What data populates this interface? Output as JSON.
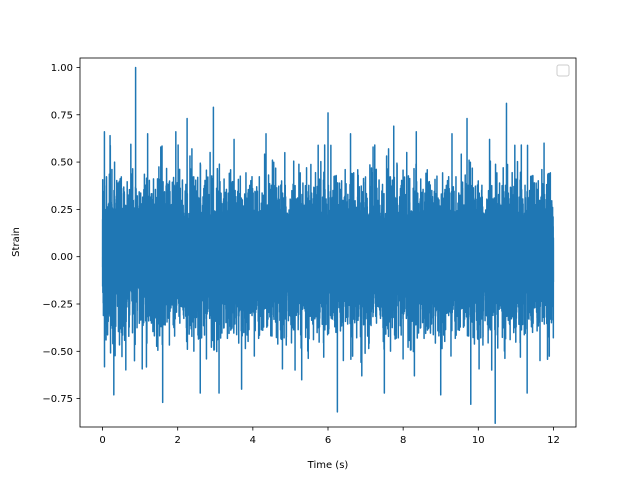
{
  "chart_data": {
    "type": "line",
    "title": "",
    "xlabel": "Time (s)",
    "ylabel": "Strain",
    "xlim": [
      -0.6,
      12.6
    ],
    "ylim": [
      -0.9,
      1.05
    ],
    "xticks": [
      0,
      2,
      4,
      6,
      8,
      10,
      12
    ],
    "xtick_labels": [
      "0",
      "2",
      "4",
      "6",
      "8",
      "10",
      "12"
    ],
    "yticks": [
      -0.75,
      -0.5,
      -0.25,
      0.0,
      0.25,
      0.5,
      0.75,
      1.0
    ],
    "ytick_labels": [
      "−0.75",
      "−0.50",
      "−0.25",
      "0.00",
      "0.25",
      "0.50",
      "0.75",
      "1.00"
    ],
    "grid": false,
    "legend": {
      "placement": "upper right",
      "entries": []
    },
    "series": [
      {
        "color": "#1f77b4",
        "x_range": [
          0,
          12
        ],
        "sample_count": 12000,
        "envelope": {
          "typical_max": 0.5,
          "typical_min": -0.5
        },
        "peaks": [
          {
            "x": 0.05,
            "y": 0.66
          },
          {
            "x": 0.2,
            "y": 0.64
          },
          {
            "x": 0.32,
            "y": 0.5
          },
          {
            "x": 0.88,
            "y": 1.0
          },
          {
            "x": 1.2,
            "y": 0.65
          },
          {
            "x": 1.55,
            "y": 0.58
          },
          {
            "x": 1.95,
            "y": 0.66
          },
          {
            "x": 2.25,
            "y": 0.73
          },
          {
            "x": 2.6,
            "y": 0.81
          },
          {
            "x": 2.95,
            "y": 0.79
          },
          {
            "x": 3.5,
            "y": 0.62
          },
          {
            "x": 4.35,
            "y": 0.65
          },
          {
            "x": 4.85,
            "y": 0.55
          },
          {
            "x": 5.3,
            "y": 0.6
          },
          {
            "x": 6.0,
            "y": 0.76
          },
          {
            "x": 6.6,
            "y": 0.65
          },
          {
            "x": 7.2,
            "y": 0.58
          },
          {
            "x": 7.75,
            "y": 0.69
          },
          {
            "x": 8.35,
            "y": 0.66
          },
          {
            "x": 9.3,
            "y": 0.65
          },
          {
            "x": 9.7,
            "y": 0.73
          },
          {
            "x": 10.3,
            "y": 0.62
          },
          {
            "x": 10.75,
            "y": 0.81
          },
          {
            "x": 11.3,
            "y": 0.72
          },
          {
            "x": 11.75,
            "y": 0.6
          }
        ],
        "troughs": [
          {
            "x": 0.3,
            "y": -0.73
          },
          {
            "x": 0.85,
            "y": -0.55
          },
          {
            "x": 1.6,
            "y": -0.77
          },
          {
            "x": 2.6,
            "y": -0.72
          },
          {
            "x": 3.1,
            "y": -0.72
          },
          {
            "x": 3.7,
            "y": -0.7
          },
          {
            "x": 5.3,
            "y": -0.65
          },
          {
            "x": 6.25,
            "y": -0.82
          },
          {
            "x": 6.9,
            "y": -0.63
          },
          {
            "x": 7.5,
            "y": -0.72
          },
          {
            "x": 8.3,
            "y": -0.63
          },
          {
            "x": 9.0,
            "y": -0.73
          },
          {
            "x": 9.8,
            "y": -0.78
          },
          {
            "x": 10.45,
            "y": -0.88
          },
          {
            "x": 11.3,
            "y": -0.72
          }
        ]
      }
    ]
  }
}
